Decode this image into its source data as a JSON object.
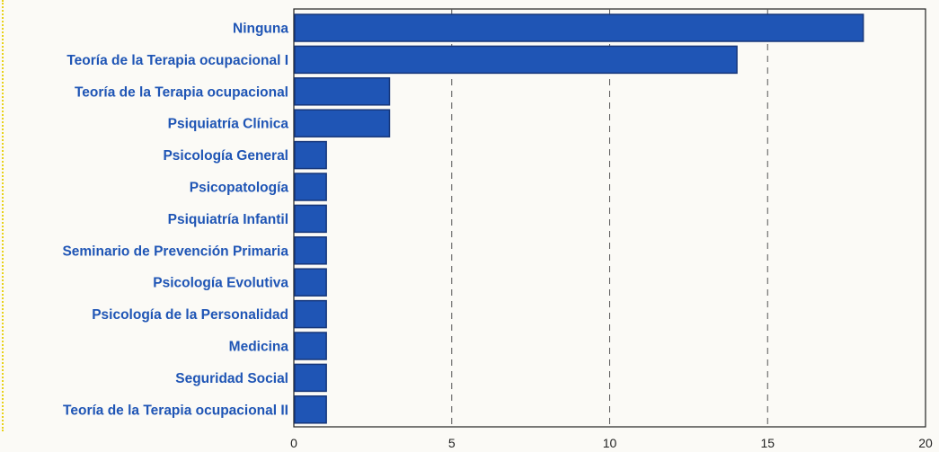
{
  "chart_data": {
    "type": "bar",
    "orientation": "horizontal",
    "categories": [
      "Ninguna",
      "Teoría de la Terapia ocupacional I",
      "Teoría de la Terapia ocupacional",
      "Psiquiatría Clínica",
      "Psicología General",
      "Psicopatología",
      "Psiquiatría Infantil",
      "Seminario de Prevención Primaria",
      "Psicología Evolutiva",
      "Psicología de la Personalidad",
      "Medicina",
      "Seguridad Social",
      "Teoría de la Terapia ocupacional II"
    ],
    "values": [
      18,
      14,
      3,
      3,
      1,
      1,
      1,
      1,
      1,
      1,
      1,
      1,
      1
    ],
    "xlim": [
      0,
      20
    ],
    "xticks": [
      "0",
      "5",
      "10",
      "15",
      "20"
    ],
    "grid": "vertical dashed",
    "title": "",
    "xlabel": "",
    "ylabel": "",
    "colors": {
      "bar": "#1f55b5",
      "bar_edge": "#16367a",
      "label": "#1f55b5",
      "grid": "#555555",
      "background": "#fbfaf6"
    }
  }
}
